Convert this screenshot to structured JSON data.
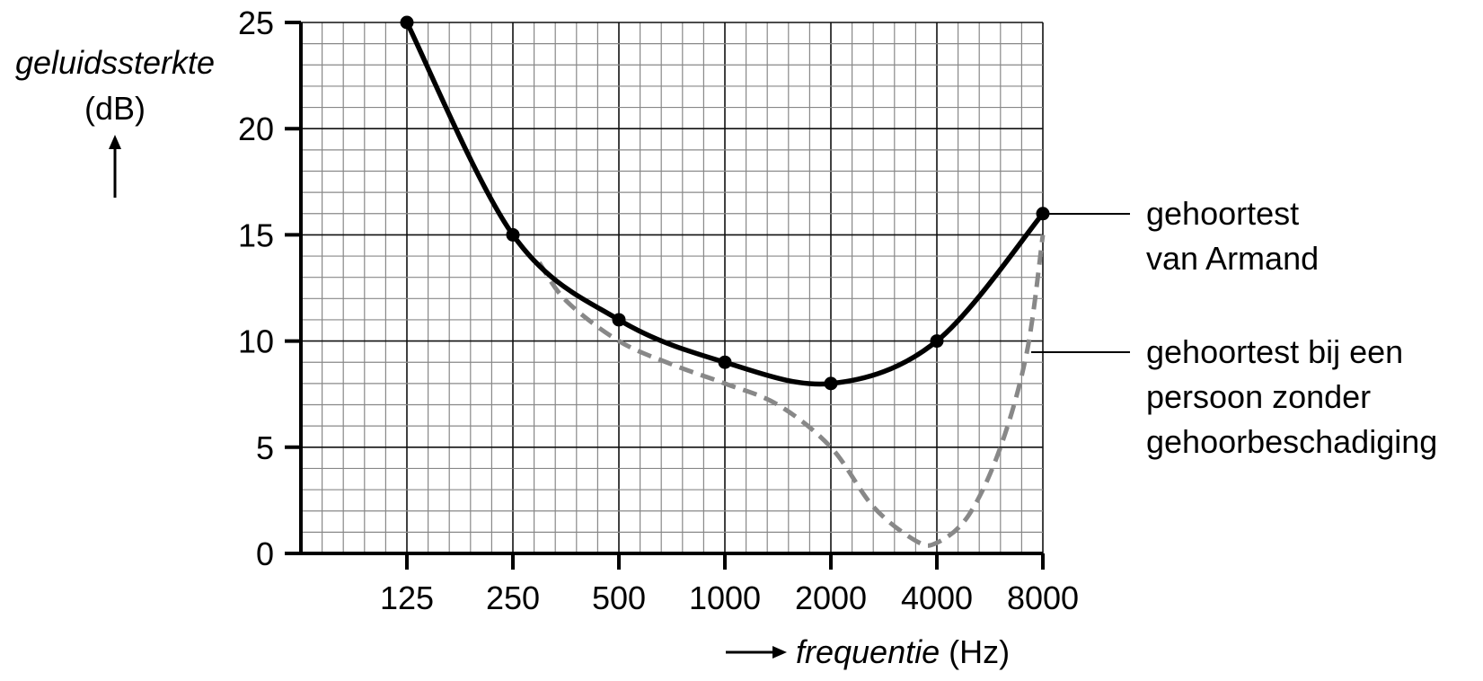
{
  "chart_data": {
    "type": "line",
    "title": "",
    "ylabel": "geluidssterkte",
    "ylabel_unit": "(dB)",
    "xlabel": "frequentie",
    "xlabel_unit": "(Hz)",
    "x_scale": "log2",
    "categories": [
      "125",
      "250",
      "500",
      "1000",
      "2000",
      "4000",
      "8000"
    ],
    "yticks": [
      "0",
      "5",
      "10",
      "15",
      "20",
      "25"
    ],
    "ylim": [
      0,
      25
    ],
    "grid": true,
    "series": [
      {
        "name": "gehoortest van Armand",
        "label_lines": [
          "gehoortest",
          "van Armand"
        ],
        "style": "solid",
        "color": "#000000",
        "markers": true,
        "x": [
          125,
          250,
          500,
          1000,
          2000,
          4000,
          8000
        ],
        "values": [
          25,
          15,
          11,
          9,
          8,
          10,
          16
        ]
      },
      {
        "name": "gehoortest bij een persoon zonder gehoorbeschadiging",
        "label_lines": [
          "gehoortest bij een",
          "persoon zonder",
          "gehoorbeschadiging"
        ],
        "style": "dashed",
        "color": "#888888",
        "markers": false,
        "x": [
          297,
          354,
          500,
          707,
          1000,
          1414,
          2000,
          2640,
          3480,
          4000,
          4925,
          6063,
          7210,
          8000
        ],
        "values": [
          13.7,
          11.9,
          10,
          8.9,
          8,
          7,
          5,
          2.2,
          0.6,
          0.5,
          1.8,
          5,
          9.5,
          15
        ]
      }
    ]
  }
}
